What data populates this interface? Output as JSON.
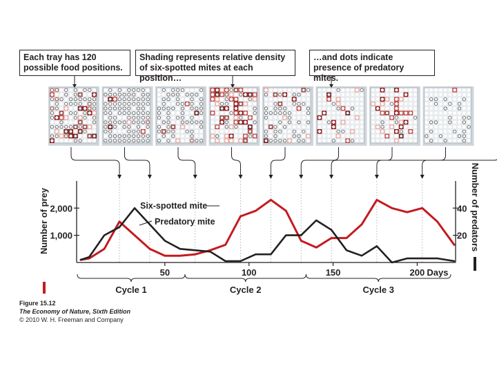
{
  "captions": [
    "Each tray has 120 possible food positions.",
    "Shading represents relative density of six-spotted mites at each position…",
    "…and dots indicate presence of predatory mites."
  ],
  "trays": [
    {
      "density": 0.3,
      "predator": 0.55
    },
    {
      "density": 0.04,
      "predator": 0.8
    },
    {
      "density": 0.08,
      "predator": 0.55
    },
    {
      "density": 0.42,
      "predator": 0.15
    },
    {
      "density": 0.1,
      "predator": 0.45
    },
    {
      "density": 0.15,
      "predator": 0.08
    },
    {
      "density": 0.25,
      "predator": 0.12
    },
    {
      "density": 0.02,
      "predator": 0.25
    }
  ],
  "colors": {
    "prey": "#c41a1f",
    "predator": "#231f20",
    "density_high": "#8b1a1a",
    "density_mid": "#c0504d",
    "density_low": "#e8b0a8",
    "dot": "#ffffff"
  },
  "chart_data": {
    "type": "line",
    "xlim": [
      0,
      222
    ],
    "series": [
      {
        "name": "Six-spotted mite",
        "axis": "left",
        "x": [
          0,
          5,
          14,
          23,
          32,
          41,
          50,
          59,
          68,
          77,
          86,
          95,
          104,
          113,
          122,
          131,
          140,
          149,
          158,
          167,
          176,
          185,
          194,
          203,
          212,
          222
        ],
        "values": [
          100,
          150,
          500,
          1500,
          1000,
          500,
          250,
          250,
          300,
          450,
          650,
          1700,
          1900,
          2300,
          1900,
          800,
          550,
          900,
          900,
          1400,
          2300,
          2000,
          1850,
          2000,
          1500,
          650
        ]
      },
      {
        "name": "Predatory mite",
        "axis": "right",
        "x": [
          0,
          5,
          14,
          23,
          32,
          41,
          50,
          59,
          68,
          77,
          86,
          95,
          104,
          113,
          122,
          131,
          140,
          149,
          158,
          167,
          176,
          185,
          194,
          203,
          212,
          222
        ],
        "values": [
          2,
          4,
          20,
          26,
          40,
          28,
          16,
          10,
          9,
          8,
          1,
          1,
          6,
          6,
          20,
          20,
          31,
          24,
          9,
          5,
          12,
          0,
          3,
          3,
          3,
          1
        ]
      }
    ],
    "y_left": {
      "label": "Number of prey",
      "ticks": [
        "1,000",
        "2,000"
      ],
      "tick_values": [
        1000,
        2000
      ],
      "ylim": [
        0,
        3200
      ]
    },
    "y_right": {
      "label": "Number of predators",
      "ticks": [
        "20",
        "40"
      ],
      "tick_values": [
        20,
        40
      ],
      "ylim": [
        0,
        64
      ]
    },
    "x_ticks": [
      "50",
      "100",
      "150",
      "200"
    ],
    "x_tick_values": [
      50,
      100,
      150,
      200
    ],
    "x_unit": "Days",
    "annotations": [
      "Six-spotted mite",
      "Predatory mite"
    ],
    "cycles": [
      {
        "label": "Cycle 1",
        "x_range": [
          0,
          64
        ]
      },
      {
        "label": "Cycle 2",
        "x_range": [
          64,
          136
        ]
      },
      {
        "label": "Cycle 3",
        "x_range": [
          136,
          222
        ]
      }
    ],
    "arrow_x": [
      23,
      41,
      68,
      95,
      113,
      131,
      149,
      176,
      203
    ]
  },
  "figure_caption": {
    "line1": "Figure 15.12",
    "line2": "The Economy of Nature, Sixth Edition",
    "line3": "© 2010 W. H. Freeman and Company"
  }
}
